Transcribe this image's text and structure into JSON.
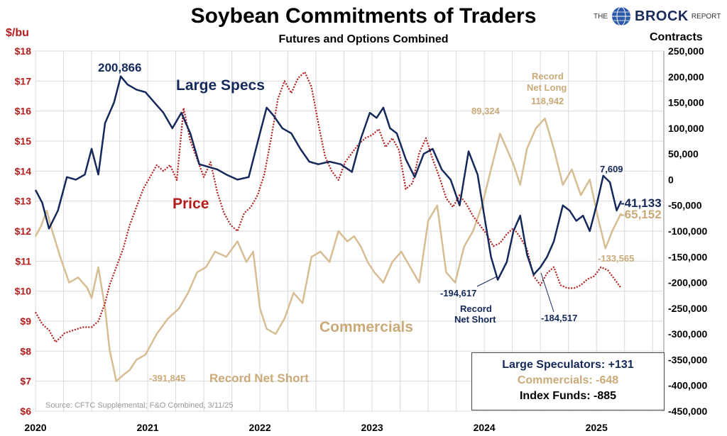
{
  "title": "Soybean Commitments of Traders",
  "subtitle": "Futures and Options Combined",
  "brand": {
    "the": "THE",
    "name": "BROCK",
    "report": "REPORT"
  },
  "left_axis_unit": "$/bu",
  "right_axis_unit": "Contracts",
  "colors": {
    "large_specs": "#14285a",
    "commercials": "#d6bd93",
    "price": "#b51c1c",
    "grid": "#d9d9d9"
  },
  "source": "Source: CFTC Supplemental; F&O Combined, 3/11/25",
  "legend": {
    "large_specs": "Large Speculators: +131",
    "commercials": "Commercials: -648",
    "index_funds": "Index Funds: -885"
  },
  "chart_data": {
    "type": "line",
    "title": "Soybean Commitments of Traders",
    "subtitle": "Futures and Options Combined",
    "x_ticks": [
      "2020",
      "2021",
      "2022",
      "2023",
      "2024",
      "2025"
    ],
    "xlim": [
      2020.0,
      2025.6
    ],
    "left_axis": {
      "label": "$/bu",
      "ylim": [
        6,
        18
      ],
      "ticks": [
        "$6",
        "$7",
        "$8",
        "$9",
        "$10",
        "$11",
        "$12",
        "$13",
        "$14",
        "$15",
        "$16",
        "$17",
        "$18"
      ]
    },
    "right_axis": {
      "label": "Contracts",
      "ylim": [
        -450000,
        250000
      ],
      "ticks": [
        "-450,000",
        "-400,000",
        "-350,000",
        "-300,000",
        "-250,000",
        "-200,000",
        "-150,000",
        "-100,000",
        "-50,000",
        "0",
        "50,000",
        "100,000",
        "150,000",
        "200,000",
        "250,000"
      ]
    },
    "grid": true,
    "series": [
      {
        "name": "Large Specs",
        "axis": "right",
        "style": "solid",
        "x": [
          2020.0,
          2020.06,
          2020.12,
          2020.2,
          2020.28,
          2020.36,
          2020.44,
          2020.5,
          2020.56,
          2020.62,
          2020.7,
          2020.76,
          2020.82,
          2020.9,
          2020.98,
          2021.06,
          2021.14,
          2021.22,
          2021.3,
          2021.38,
          2021.46,
          2021.54,
          2021.62,
          2021.7,
          2021.8,
          2021.9,
          2022.0,
          2022.06,
          2022.12,
          2022.2,
          2022.28,
          2022.36,
          2022.44,
          2022.52,
          2022.62,
          2022.72,
          2022.82,
          2022.9,
          2022.98,
          2023.04,
          2023.1,
          2023.16,
          2023.22,
          2023.3,
          2023.38,
          2023.46,
          2023.54,
          2023.62,
          2023.7,
          2023.78,
          2023.86,
          2023.94,
          2024.0,
          2024.06,
          2024.12,
          2024.2,
          2024.26,
          2024.32,
          2024.38,
          2024.44,
          2024.5,
          2024.56,
          2024.62,
          2024.7,
          2024.76,
          2024.82,
          2024.88,
          2024.94,
          2025.0,
          2025.06,
          2025.12,
          2025.18,
          2025.22
        ],
        "values": [
          -20000,
          -45000,
          -95000,
          -60000,
          5000,
          0,
          10000,
          60000,
          10000,
          110000,
          150000,
          200866,
          185000,
          175000,
          170000,
          150000,
          130000,
          100000,
          130000,
          90000,
          30000,
          25000,
          20000,
          10000,
          0,
          5000,
          90000,
          140000,
          125000,
          100000,
          90000,
          60000,
          35000,
          30000,
          35000,
          30000,
          15000,
          80000,
          130000,
          120000,
          140000,
          100000,
          90000,
          40000,
          5000,
          50000,
          60000,
          20000,
          0,
          -50000,
          55000,
          10000,
          -70000,
          -150000,
          -194617,
          -160000,
          -100000,
          -70000,
          -145000,
          -184517,
          -170000,
          -150000,
          -120000,
          -50000,
          -60000,
          -80000,
          -70000,
          -100000,
          -50000,
          7609,
          -5000,
          -60000,
          -41133
        ]
      },
      {
        "name": "Commercials",
        "axis": "right",
        "style": "solid",
        "x": [
          2020.0,
          2020.05,
          2020.1,
          2020.15,
          2020.22,
          2020.3,
          2020.38,
          2020.46,
          2020.5,
          2020.56,
          2020.62,
          2020.66,
          2020.72,
          2020.78,
          2020.84,
          2020.9,
          2020.98,
          2021.08,
          2021.18,
          2021.28,
          2021.36,
          2021.44,
          2021.52,
          2021.6,
          2021.7,
          2021.8,
          2021.88,
          2021.94,
          2022.0,
          2022.06,
          2022.14,
          2022.22,
          2022.3,
          2022.38,
          2022.46,
          2022.54,
          2022.62,
          2022.7,
          2022.78,
          2022.84,
          2022.9,
          2022.96,
          2023.02,
          2023.1,
          2023.18,
          2023.26,
          2023.34,
          2023.42,
          2023.5,
          2023.58,
          2023.66,
          2023.74,
          2023.82,
          2023.9,
          2023.98,
          2024.06,
          2024.14,
          2024.2,
          2024.26,
          2024.32,
          2024.38,
          2024.46,
          2024.54,
          2024.62,
          2024.7,
          2024.78,
          2024.86,
          2024.94,
          2025.02,
          2025.08,
          2025.14,
          2025.22
        ],
        "values": [
          -110000,
          -90000,
          -60000,
          -100000,
          -150000,
          -200000,
          -190000,
          -210000,
          -230000,
          -170000,
          -250000,
          -330000,
          -391845,
          -380000,
          -370000,
          -350000,
          -340000,
          -300000,
          -270000,
          -250000,
          -220000,
          -180000,
          -170000,
          -140000,
          -150000,
          -120000,
          -160000,
          -140000,
          -250000,
          -290000,
          -300000,
          -270000,
          -220000,
          -240000,
          -150000,
          -140000,
          -160000,
          -100000,
          -120000,
          -110000,
          -130000,
          -160000,
          -180000,
          -200000,
          -160000,
          -140000,
          -170000,
          -200000,
          -80000,
          -50000,
          -180000,
          -200000,
          -130000,
          -100000,
          -50000,
          20000,
          89324,
          60000,
          30000,
          -10000,
          60000,
          100000,
          118942,
          60000,
          -10000,
          20000,
          -30000,
          0,
          -80000,
          -133565,
          -100000,
          -65152
        ]
      },
      {
        "name": "Price",
        "axis": "left",
        "style": "dotted",
        "x": [
          2020.0,
          2020.06,
          2020.12,
          2020.18,
          2020.26,
          2020.34,
          2020.42,
          2020.5,
          2020.56,
          2020.62,
          2020.66,
          2020.72,
          2020.78,
          2020.84,
          2020.9,
          2020.96,
          2021.02,
          2021.08,
          2021.14,
          2021.2,
          2021.26,
          2021.32,
          2021.38,
          2021.44,
          2021.5,
          2021.56,
          2021.62,
          2021.68,
          2021.74,
          2021.8,
          2021.86,
          2021.92,
          2021.98,
          2022.04,
          2022.1,
          2022.16,
          2022.22,
          2022.28,
          2022.34,
          2022.4,
          2022.46,
          2022.52,
          2022.58,
          2022.64,
          2022.7,
          2022.76,
          2022.82,
          2022.88,
          2022.94,
          2023.0,
          2023.06,
          2023.12,
          2023.18,
          2023.24,
          2023.3,
          2023.36,
          2023.42,
          2023.48,
          2023.54,
          2023.6,
          2023.66,
          2023.72,
          2023.78,
          2023.84,
          2023.9,
          2023.96,
          2024.02,
          2024.08,
          2024.14,
          2024.2,
          2024.26,
          2024.32,
          2024.38,
          2024.44,
          2024.5,
          2024.56,
          2024.62,
          2024.68,
          2024.74,
          2024.8,
          2024.86,
          2024.92,
          2024.98,
          2025.04,
          2025.1,
          2025.16,
          2025.22
        ],
        "values": [
          9.3,
          8.9,
          8.7,
          8.3,
          8.6,
          8.7,
          8.8,
          8.8,
          9.0,
          9.6,
          10.2,
          10.8,
          11.4,
          12.2,
          12.8,
          13.4,
          13.8,
          14.2,
          14.0,
          14.2,
          13.7,
          16.1,
          15.0,
          14.4,
          13.8,
          14.3,
          13.3,
          12.6,
          12.2,
          12.0,
          12.6,
          12.8,
          13.2,
          13.9,
          15.1,
          16.4,
          17.0,
          16.6,
          17.1,
          17.3,
          16.8,
          15.6,
          14.5,
          14.0,
          13.7,
          14.3,
          14.6,
          14.9,
          15.1,
          15.2,
          15.4,
          14.8,
          15.1,
          14.7,
          13.4,
          13.6,
          14.6,
          15.1,
          14.4,
          13.8,
          13.1,
          12.8,
          13.2,
          12.9,
          12.5,
          12.2,
          11.9,
          11.5,
          11.6,
          11.9,
          12.1,
          11.8,
          11.4,
          10.5,
          10.2,
          10.6,
          10.8,
          10.2,
          10.1,
          10.1,
          10.2,
          10.4,
          10.5,
          10.8,
          10.7,
          10.4,
          10.1
        ]
      }
    ],
    "annotations": {
      "large_specs_label": "Large Specs",
      "commercials_label": "Commercials",
      "price_label": "Price",
      "ls_peak": "200,866",
      "ls_record_short_value": "-194,617",
      "ls_record_short_text1": "Record",
      "ls_record_short_text2": "Net Short",
      "ls_low_2024": "-184,517",
      "ls_recent_high": "7,609",
      "ls_last": "-41,133",
      "comm_last": "-65,152",
      "comm_low_2021": "-391,845",
      "comm_record_short_text": "Record Net Short",
      "comm_2024_peak": "89,324",
      "comm_record_long_text1": "Record",
      "comm_record_long_text2": "Net Long",
      "comm_record_long_value": "118,942",
      "comm_recent_low": "-133,565"
    }
  }
}
